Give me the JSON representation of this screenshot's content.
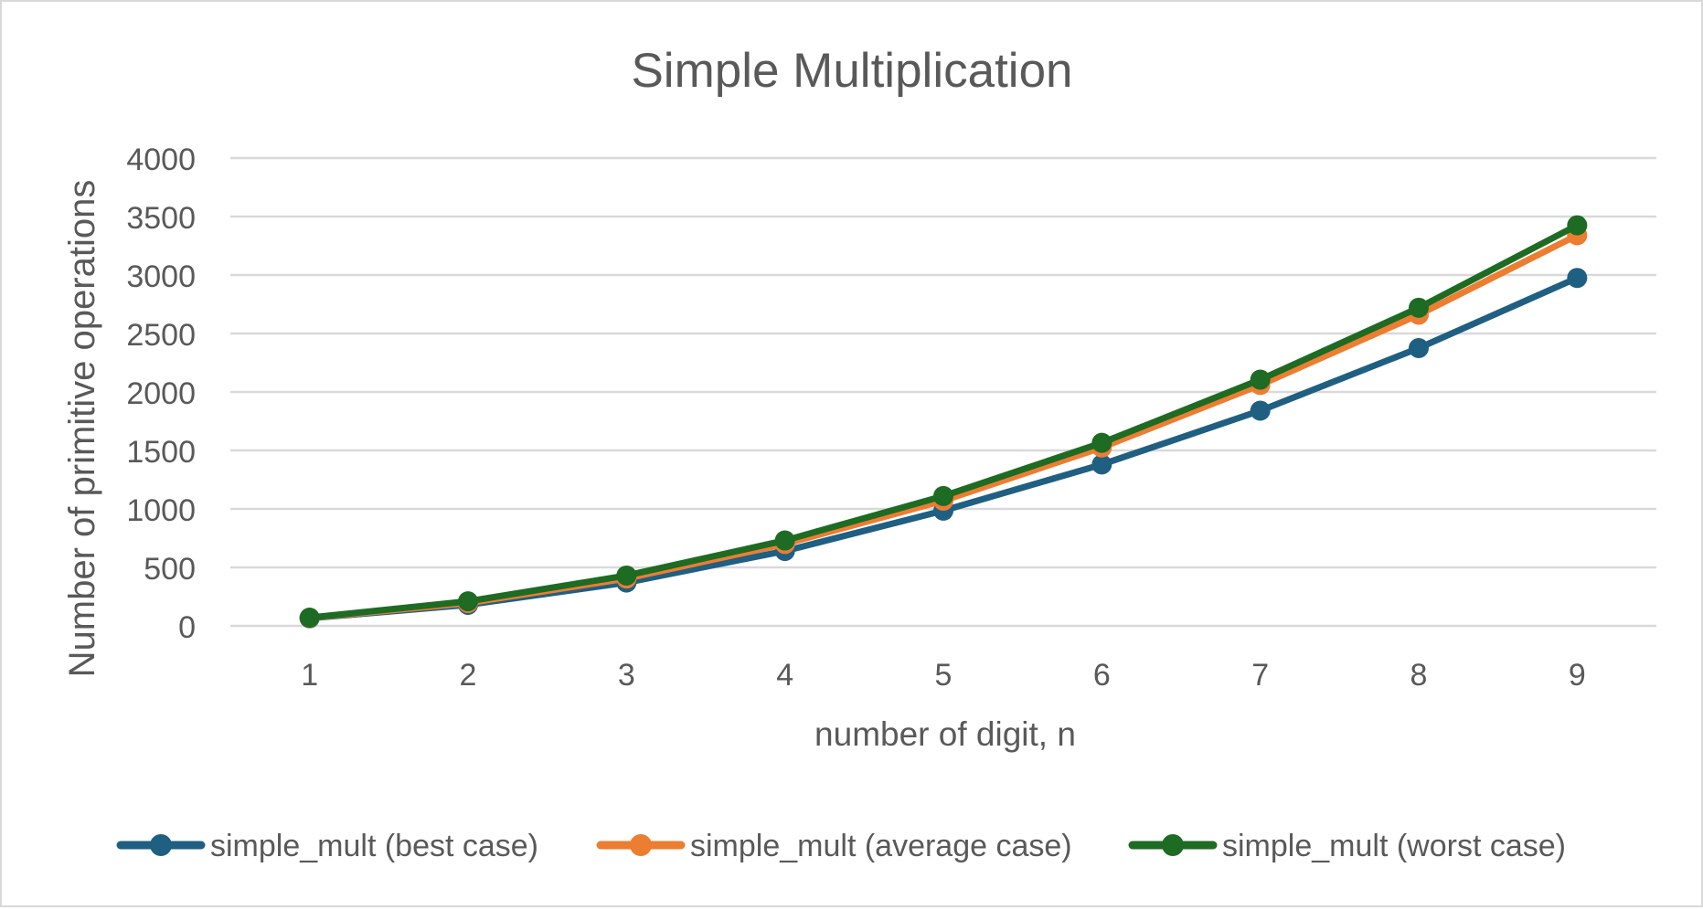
{
  "chart_data": {
    "type": "line",
    "title": "Simple Multiplication",
    "xlabel": "number of digit, n",
    "ylabel": "Number of primitive operations",
    "categories": [
      "1",
      "2",
      "3",
      "4",
      "5",
      "6",
      "7",
      "8",
      "9"
    ],
    "ylim": [
      0,
      4000
    ],
    "yticks": [
      "0",
      "500",
      "1000",
      "1500",
      "2000",
      "2500",
      "3000",
      "3500",
      "4000"
    ],
    "grid": true,
    "legend": "bottom",
    "series": [
      {
        "name": "simple_mult (best case)",
        "color": "#1f5f82",
        "values": [
          65,
          180,
          370,
          640,
          985,
          1380,
          1840,
          2375,
          2975
        ]
      },
      {
        "name": "simple_mult (average case)",
        "color": "#ed7d31",
        "values": [
          68,
          195,
          405,
          700,
          1070,
          1525,
          2060,
          2660,
          3340
        ]
      },
      {
        "name": "simple_mult (worst case)",
        "color": "#1e6b23",
        "values": [
          70,
          210,
          430,
          730,
          1110,
          1565,
          2105,
          2720,
          3425
        ]
      }
    ]
  }
}
